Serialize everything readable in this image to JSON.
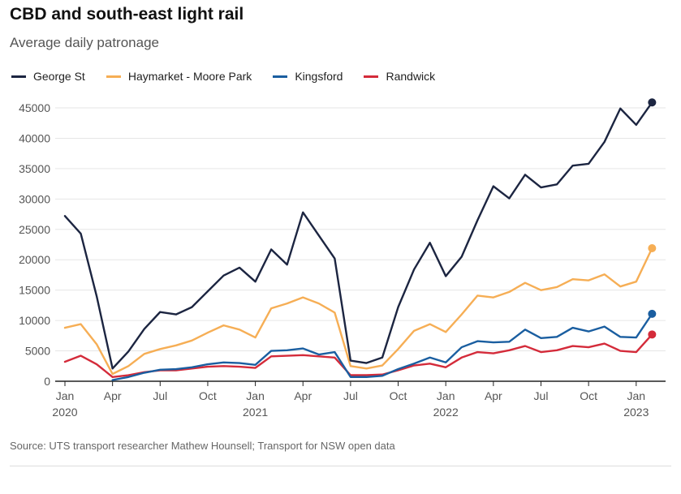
{
  "header": {
    "title": "CBD and south-east light rail",
    "subtitle": "Average daily patronage"
  },
  "footer": {
    "source": "Source: UTS transport researcher Mathew Hounsell; Transport for NSW open data"
  },
  "chart_data": {
    "type": "line",
    "title": "CBD and south-east light rail",
    "subtitle": "Average daily patronage",
    "xlabel": "",
    "ylabel": "",
    "ylim": [
      0,
      45000
    ],
    "yticks": [
      0,
      5000,
      10000,
      15000,
      20000,
      25000,
      30000,
      35000,
      40000,
      45000
    ],
    "grid": true,
    "legend_position": "top-left",
    "x_labels": [
      {
        "index": 0,
        "month": "Jan",
        "year": "2020"
      },
      {
        "index": 3,
        "month": "Apr",
        "year": ""
      },
      {
        "index": 6,
        "month": "Jul",
        "year": ""
      },
      {
        "index": 9,
        "month": "Oct",
        "year": ""
      },
      {
        "index": 12,
        "month": "Jan",
        "year": "2021"
      },
      {
        "index": 15,
        "month": "Apr",
        "year": ""
      },
      {
        "index": 18,
        "month": "Jul",
        "year": ""
      },
      {
        "index": 21,
        "month": "Oct",
        "year": ""
      },
      {
        "index": 24,
        "month": "Jan",
        "year": "2022"
      },
      {
        "index": 27,
        "month": "Apr",
        "year": ""
      },
      {
        "index": 30,
        "month": "Jul",
        "year": ""
      },
      {
        "index": 33,
        "month": "Oct",
        "year": ""
      },
      {
        "index": 36,
        "month": "Jan",
        "year": "2023"
      }
    ],
    "months": [
      "Jan 2020",
      "Feb 2020",
      "Mar 2020",
      "Apr 2020",
      "May 2020",
      "Jun 2020",
      "Jul 2020",
      "Aug 2020",
      "Sep 2020",
      "Oct 2020",
      "Nov 2020",
      "Dec 2020",
      "Jan 2021",
      "Feb 2021",
      "Mar 2021",
      "Apr 2021",
      "May 2021",
      "Jun 2021",
      "Jul 2021",
      "Aug 2021",
      "Sep 2021",
      "Oct 2021",
      "Nov 2021",
      "Dec 2021",
      "Jan 2022",
      "Feb 2022",
      "Mar 2022",
      "Apr 2022",
      "May 2022",
      "Jun 2022",
      "Jul 2022",
      "Aug 2022",
      "Sep 2022",
      "Oct 2022",
      "Nov 2022",
      "Dec 2022",
      "Jan 2023",
      "Feb 2023"
    ],
    "series": [
      {
        "name": "George St",
        "color": "#1c2541",
        "values": [
          27200,
          24300,
          14000,
          2100,
          4900,
          8600,
          11400,
          11000,
          12200,
          14800,
          17400,
          18700,
          16400,
          21700,
          19200,
          27800,
          24000,
          20200,
          3400,
          3000,
          3900,
          12200,
          18400,
          22800,
          17300,
          20500,
          26500,
          32100,
          30100,
          34000,
          31900,
          32400,
          35500,
          35800,
          39400,
          44900,
          42200,
          45900
        ]
      },
      {
        "name": "Haymarket - Moore Park",
        "color": "#f6ae55",
        "values": [
          8800,
          9400,
          6100,
          1200,
          2500,
          4500,
          5300,
          5900,
          6700,
          8000,
          9200,
          8500,
          7200,
          12000,
          12800,
          13800,
          12800,
          11300,
          2500,
          2100,
          2600,
          5300,
          8300,
          9400,
          8100,
          11000,
          14100,
          13800,
          14700,
          16200,
          15000,
          15500,
          16800,
          16600,
          17600,
          15600,
          16400,
          21900
        ]
      },
      {
        "name": "Kingsford",
        "color": "#1a5ea0",
        "values": [
          null,
          null,
          null,
          200,
          700,
          1400,
          1900,
          2000,
          2300,
          2800,
          3100,
          3000,
          2700,
          5000,
          5100,
          5400,
          4400,
          4800,
          700,
          700,
          900,
          2000,
          2900,
          3900,
          3100,
          5600,
          6600,
          6400,
          6500,
          8500,
          7100,
          7300,
          8800,
          8200,
          9000,
          7300,
          7200,
          11100
        ]
      },
      {
        "name": "Randwick",
        "color": "#d42b3a",
        "values": [
          3200,
          4200,
          2800,
          700,
          1000,
          1500,
          1800,
          1800,
          2100,
          2400,
          2500,
          2400,
          2200,
          4100,
          4200,
          4300,
          4100,
          3900,
          1000,
          1000,
          1100,
          1800,
          2600,
          2900,
          2300,
          3900,
          4800,
          4600,
          5100,
          5800,
          4800,
          5100,
          5800,
          5600,
          6200,
          5000,
          4800,
          7700
        ]
      }
    ]
  }
}
